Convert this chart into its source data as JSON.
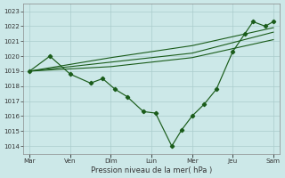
{
  "xlabel": "Pression niveau de la mer( hPa )",
  "bg_color": "#cce8e8",
  "grid_color": "#aacccc",
  "line_color": "#1a5c1a",
  "ylim": [
    1013.5,
    1023.5
  ],
  "yticks": [
    1014,
    1015,
    1016,
    1017,
    1018,
    1019,
    1020,
    1021,
    1022,
    1023
  ],
  "x_labels": [
    "Mar",
    "Ven",
    "Dim",
    "Lun",
    "Mer",
    "Jeu",
    "Sam"
  ],
  "x_tick_pos": [
    0,
    1,
    2,
    3,
    4,
    5,
    6
  ],
  "xlim": [
    -0.15,
    6.15
  ],
  "jagged_x": [
    0,
    0.5,
    1.0,
    1.5,
    1.8,
    2.1,
    2.4,
    2.8,
    3.1,
    3.5,
    3.75,
    4.0,
    4.3,
    4.6,
    5.0,
    5.3,
    5.5,
    5.8,
    6.0
  ],
  "jagged_y": [
    1019.0,
    1020.0,
    1018.8,
    1018.2,
    1018.5,
    1017.8,
    1017.3,
    1016.3,
    1016.2,
    1014.0,
    1015.1,
    1016.0,
    1016.8,
    1017.8,
    1020.3,
    1021.5,
    1022.3,
    1022.0,
    1022.3
  ],
  "band_x": [
    0,
    1.0,
    2.0,
    2.5,
    3.0,
    3.5,
    4.0,
    4.5,
    5.0,
    5.5,
    6.0
  ],
  "band_low_y": [
    1019.0,
    1019.15,
    1019.3,
    1019.45,
    1019.6,
    1019.75,
    1019.9,
    1020.2,
    1020.5,
    1020.8,
    1021.1
  ],
  "band_mid_y": [
    1019.0,
    1019.3,
    1019.6,
    1019.75,
    1019.9,
    1020.05,
    1020.2,
    1020.55,
    1020.9,
    1021.25,
    1021.6
  ],
  "band_high_y": [
    1019.0,
    1019.45,
    1019.9,
    1020.1,
    1020.3,
    1020.5,
    1020.7,
    1021.0,
    1021.3,
    1021.6,
    1021.9
  ]
}
